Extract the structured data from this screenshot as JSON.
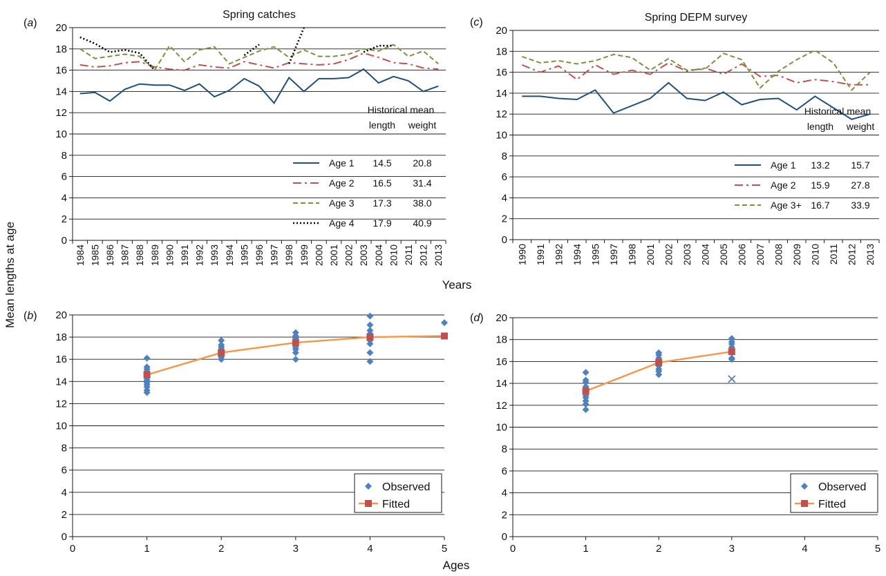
{
  "figure": {
    "ylabel": "Mean lengths at age",
    "years_label": "Years",
    "ages_label": "Ages"
  },
  "chart_data": [
    {
      "id": "a",
      "panel_label": "(a)",
      "type": "line",
      "title": "Spring catches",
      "ylim": [
        0,
        20
      ],
      "yticks": [
        0,
        2,
        4,
        6,
        8,
        10,
        12,
        14,
        16,
        18,
        20
      ],
      "grid": true,
      "categories": [
        "1984",
        "1985",
        "1986",
        "1987",
        "1988",
        "1989",
        "1990",
        "1991",
        "1992",
        "1993",
        "1994",
        "1995",
        "1996",
        "1997",
        "1998",
        "1999",
        "2000",
        "2001",
        "2002",
        "2003",
        "2004",
        "2010",
        "2011",
        "2012",
        "2013"
      ],
      "table_header": [
        "Historical mean",
        "length",
        "weight"
      ],
      "legend_position": "bottom-right",
      "series": [
        {
          "name": "Age 1",
          "style": "solid",
          "color": "#1f4e79",
          "length": "14.5",
          "weight": "20.8",
          "values": [
            13.8,
            13.9,
            13.1,
            14.2,
            14.7,
            14.6,
            14.6,
            14.1,
            14.7,
            13.5,
            14.1,
            15.2,
            14.5,
            12.9,
            15.3,
            14.0,
            15.2,
            15.2,
            15.3,
            16.1,
            14.8,
            15.4,
            15.0,
            14.0,
            14.5
          ]
        },
        {
          "name": "Age 2",
          "style": "dashdot",
          "color": "#c0504d",
          "length": "16.5",
          "weight": "31.4",
          "values": [
            16.5,
            16.3,
            16.4,
            16.7,
            16.8,
            16.3,
            16.1,
            16.0,
            16.5,
            16.3,
            16.2,
            16.8,
            16.5,
            16.2,
            16.7,
            16.6,
            16.5,
            16.6,
            17.0,
            17.6,
            17.2,
            16.7,
            16.6,
            16.2,
            16.1
          ]
        },
        {
          "name": "Age 3",
          "style": "dashed",
          "color": "#77933c",
          "length": "17.3",
          "weight": "38.0",
          "values": [
            18.0,
            17.1,
            17.3,
            17.5,
            17.3,
            16.0,
            18.3,
            16.8,
            17.9,
            18.2,
            16.6,
            17.2,
            17.8,
            18.2,
            17.2,
            17.9,
            17.3,
            17.3,
            17.5,
            18.0,
            17.8,
            18.4,
            17.3,
            17.8,
            16.6
          ]
        },
        {
          "name": "Age 4",
          "style": "dotted",
          "color": "#000000",
          "length": "17.9",
          "weight": "40.9",
          "values": [
            19.1,
            18.5,
            17.7,
            17.9,
            17.6,
            16.0,
            null,
            null,
            null,
            null,
            null,
            17.4,
            18.4,
            null,
            16.6,
            20.0,
            null,
            null,
            null,
            17.7,
            18.3,
            18.3,
            null,
            null,
            null
          ]
        }
      ]
    },
    {
      "id": "c",
      "panel_label": "(c)",
      "type": "line",
      "title": "Spring DEPM survey",
      "ylim": [
        0,
        20
      ],
      "yticks": [
        0,
        2,
        4,
        6,
        8,
        10,
        12,
        14,
        16,
        18,
        20
      ],
      "grid": true,
      "categories": [
        "1990",
        "1991",
        "1992",
        "1994",
        "1995",
        "1997",
        "1998",
        "2001",
        "2002",
        "2003",
        "2004",
        "2005",
        "2006",
        "2007",
        "2008",
        "2009",
        "2010",
        "2011",
        "2012",
        "2013"
      ],
      "table_header": [
        "Historical mean",
        "length",
        "weight"
      ],
      "legend_position": "bottom-right",
      "series": [
        {
          "name": "Age 1",
          "style": "solid",
          "color": "#1f4e79",
          "length": "13.2",
          "weight": "15.7",
          "values": [
            13.7,
            13.7,
            13.5,
            13.4,
            14.3,
            12.1,
            12.8,
            13.5,
            15.0,
            13.5,
            13.3,
            14.1,
            12.9,
            13.4,
            13.5,
            12.4,
            13.7,
            12.6,
            11.5,
            12.0
          ]
        },
        {
          "name": "Age 2",
          "style": "dashdot",
          "color": "#c0504d",
          "length": "15.9",
          "weight": "27.8",
          "values": [
            16.7,
            16.0,
            16.6,
            15.3,
            16.7,
            15.8,
            16.2,
            15.8,
            16.9,
            16.1,
            16.4,
            15.8,
            16.8,
            15.6,
            15.7,
            15.0,
            15.3,
            15.1,
            14.8,
            14.8
          ]
        },
        {
          "name": "Age 3+",
          "style": "dashed",
          "color": "#77933c",
          "length": "16.7",
          "weight": "33.9",
          "values": [
            17.5,
            16.9,
            17.1,
            16.8,
            17.1,
            17.7,
            17.4,
            16.2,
            17.3,
            16.2,
            16.3,
            17.8,
            17.2,
            14.5,
            16.1,
            17.2,
            18.1,
            16.9,
            14.3,
            16.0
          ]
        }
      ]
    },
    {
      "id": "b",
      "panel_label": "(b)",
      "type": "scatter",
      "xlim": [
        0,
        5
      ],
      "ylim": [
        0,
        20
      ],
      "xticks": [
        0,
        1,
        2,
        3,
        4,
        5
      ],
      "yticks": [
        0,
        2,
        4,
        6,
        8,
        10,
        12,
        14,
        16,
        18,
        20
      ],
      "grid": true,
      "legend_position": "bottom-right",
      "series": [
        {
          "name": "Observed",
          "marker": "diamond",
          "color": "#4f81bd",
          "points": [
            [
              1,
              13.0
            ],
            [
              1,
              13.2
            ],
            [
              1,
              13.5
            ],
            [
              1,
              13.7
            ],
            [
              1,
              13.9
            ],
            [
              1,
              14.0
            ],
            [
              1,
              14.1
            ],
            [
              1,
              14.3
            ],
            [
              1,
              14.4
            ],
            [
              1,
              14.6
            ],
            [
              1,
              14.7
            ],
            [
              1,
              14.9
            ],
            [
              1,
              15.1
            ],
            [
              1,
              15.3
            ],
            [
              1,
              16.1
            ],
            [
              2,
              16.0
            ],
            [
              2,
              16.2
            ],
            [
              2,
              16.3
            ],
            [
              2,
              16.4
            ],
            [
              2,
              16.6
            ],
            [
              2,
              16.7
            ],
            [
              2,
              16.9
            ],
            [
              2,
              17.1
            ],
            [
              2,
              17.3
            ],
            [
              2,
              17.7
            ],
            [
              3,
              16.0
            ],
            [
              3,
              16.6
            ],
            [
              3,
              16.9
            ],
            [
              3,
              17.1
            ],
            [
              3,
              17.3
            ],
            [
              3,
              17.5
            ],
            [
              3,
              17.7
            ],
            [
              3,
              17.9
            ],
            [
              3,
              18.1
            ],
            [
              3,
              18.4
            ],
            [
              4,
              15.8
            ],
            [
              4,
              16.6
            ],
            [
              4,
              17.4
            ],
            [
              4,
              17.7
            ],
            [
              4,
              17.9
            ],
            [
              4,
              18.1
            ],
            [
              4,
              18.3
            ],
            [
              4,
              18.6
            ],
            [
              4,
              19.1
            ],
            [
              4,
              19.9
            ],
            [
              5,
              19.3
            ]
          ]
        },
        {
          "name": "Fitted",
          "marker": "square",
          "color": "#c0504d",
          "line_color": "#f79646",
          "points": [
            [
              1,
              14.6
            ],
            [
              2,
              16.6
            ],
            [
              3,
              17.5
            ],
            [
              4,
              18.0
            ],
            [
              5,
              18.1
            ]
          ]
        }
      ]
    },
    {
      "id": "d",
      "panel_label": "(d)",
      "type": "scatter",
      "xlim": [
        0,
        5
      ],
      "ylim": [
        0,
        20
      ],
      "xticks": [
        0,
        1,
        2,
        3,
        4,
        5
      ],
      "yticks": [
        0,
        2,
        4,
        6,
        8,
        10,
        12,
        14,
        16,
        18,
        20
      ],
      "grid": true,
      "legend_position": "bottom-right",
      "series": [
        {
          "name": "Observed",
          "marker": "diamond",
          "color": "#4f81bd",
          "points": [
            [
              1,
              11.6
            ],
            [
              1,
              12.1
            ],
            [
              1,
              12.4
            ],
            [
              1,
              12.7
            ],
            [
              1,
              12.9
            ],
            [
              1,
              13.2
            ],
            [
              1,
              13.4
            ],
            [
              1,
              13.7
            ],
            [
              1,
              14.1
            ],
            [
              1,
              14.3
            ],
            [
              1,
              15.0
            ],
            [
              2,
              14.8
            ],
            [
              2,
              15.1
            ],
            [
              2,
              15.3
            ],
            [
              2,
              15.6
            ],
            [
              2,
              15.8
            ],
            [
              2,
              16.0
            ],
            [
              2,
              16.3
            ],
            [
              2,
              16.6
            ],
            [
              2,
              16.8
            ],
            [
              3,
              16.2
            ],
            [
              3,
              16.3
            ],
            [
              3,
              16.8
            ],
            [
              3,
              17.0
            ],
            [
              3,
              17.3
            ],
            [
              3,
              17.6
            ],
            [
              3,
              17.8
            ],
            [
              3,
              18.1
            ]
          ]
        },
        {
          "name": "",
          "marker": "x",
          "color": "#4f81bd",
          "points": [
            [
              3,
              14.4
            ]
          ]
        },
        {
          "name": "Fitted",
          "marker": "square",
          "color": "#c0504d",
          "line_color": "#f79646",
          "points": [
            [
              1,
              13.3
            ],
            [
              2,
              15.9
            ],
            [
              3,
              16.9
            ]
          ]
        }
      ]
    }
  ]
}
